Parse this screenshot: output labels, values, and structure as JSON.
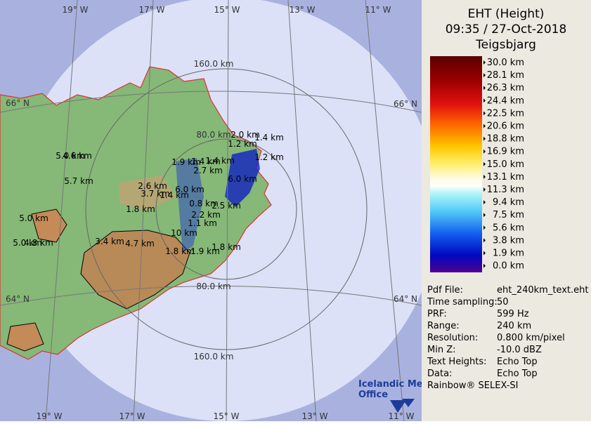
{
  "header": {
    "title": [
      "EHT (Height)",
      "09:35 / 27-Oct-2018",
      "Teigsbjarg"
    ]
  },
  "map": {
    "longitude_labels_top": [
      "19° W",
      "17° W",
      "15° W",
      "13° W",
      "11° W"
    ],
    "longitude_labels_bottom": [
      "19° W",
      "17° W",
      "15° W",
      "13° W",
      "11° W"
    ],
    "latitude_labels": [
      "66° N",
      "66° N",
      "64° N",
      "64° N"
    ],
    "range_labels": [
      "160.0 km",
      "80.0 km",
      "80.0 km",
      "160.0 km"
    ],
    "echo_labels": [
      "2.0 km",
      "1.4 km",
      "1.2 km",
      "1.2 km",
      "1.9 km",
      "1.4 km",
      "1.4 km",
      "2.7 km",
      "6.0 km",
      "2.6 km",
      "6.0 km",
      "3.7 km",
      "1.4 km",
      "1.8 km",
      "0.8 km",
      "2.5 km",
      "2.2 km",
      "1.1 km",
      "10 km",
      "3.4 km",
      "4.7 km",
      "1.8 km",
      "1.9 km",
      "1.8 km",
      "5.0 km",
      "4.6 km",
      "5.7 km",
      "5.0 km",
      "5.0 km",
      "4.8 km"
    ]
  },
  "legend": {
    "labels": [
      "30.0 km",
      "28.1 km",
      "26.3 km",
      "24.4 km",
      "22.5 km",
      "20.6 km",
      "18.8 km",
      "16.9 km",
      "15.0 km",
      "13.1 km",
      "11.3 km",
      "9.4 km",
      "7.5 km",
      "5.6 km",
      "3.8 km",
      "1.9 km",
      "0.0 km"
    ]
  },
  "info": {
    "rows": [
      [
        "Pdf File:",
        "eht_240km_text.eht"
      ],
      [
        "Time sampling:",
        "50"
      ],
      [
        "PRF:",
        "599 Hz"
      ],
      [
        "Range:",
        "240 km"
      ],
      [
        "Resolution:",
        "0.800 km/pixel"
      ],
      [
        "Min Z:",
        "-10.0 dBZ"
      ],
      [
        "Text Heights:",
        "Echo Top"
      ],
      [
        "Data:",
        "Echo Top"
      ]
    ],
    "footer": "Rainbow® SELEX-SI"
  },
  "logo": [
    "Icelandic Met",
    "Office"
  ]
}
